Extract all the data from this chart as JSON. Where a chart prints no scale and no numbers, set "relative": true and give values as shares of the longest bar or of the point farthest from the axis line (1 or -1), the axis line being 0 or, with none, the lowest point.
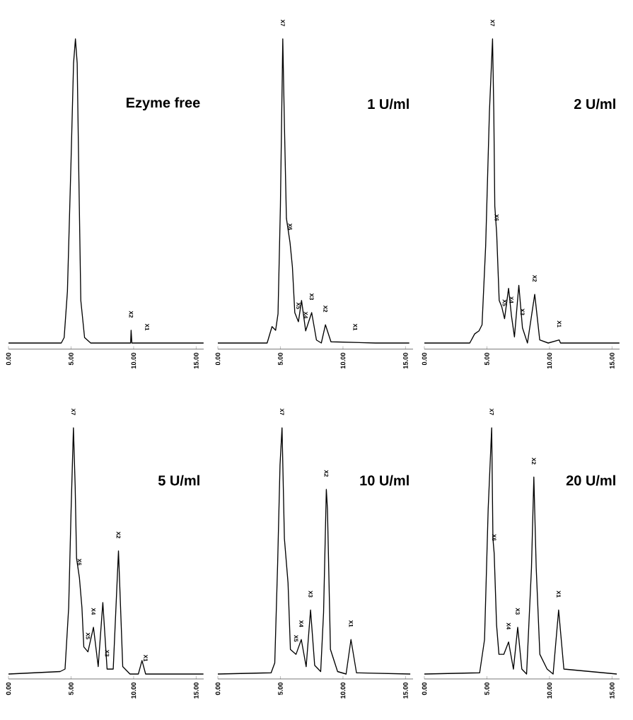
{
  "chart_data": [
    {
      "type": "line",
      "title": "Ezyme free",
      "relative": true,
      "color": "#000000",
      "xlim": [
        0,
        15.6
      ],
      "xticks": [
        {
          "value": 0,
          "label": "0.00"
        },
        {
          "value": 5,
          "label": "5.00"
        },
        {
          "value": 10,
          "label": "10.00"
        },
        {
          "value": 15,
          "label": "15.00"
        }
      ],
      "x": [
        0,
        4.22,
        4.45,
        4.71,
        5.0,
        5.2,
        5.35,
        5.49,
        5.63,
        5.78,
        6.08,
        6.57,
        8.92,
        9.76,
        9.8,
        9.86,
        15.59
      ],
      "values": [
        0,
        0,
        0.018,
        0.17,
        0.6,
        0.92,
        1.0,
        0.92,
        0.53,
        0.14,
        0.018,
        0,
        0,
        0,
        0.042,
        0,
        0
      ],
      "annotations": [
        {
          "text": "X2",
          "x": 9.8,
          "y": 0.042
        },
        {
          "text": "X1",
          "x": 11.08,
          "y": 0
        }
      ]
    },
    {
      "type": "line",
      "title": "1 U/ml",
      "relative": true,
      "color": "#000000",
      "xlim": [
        0,
        15.6
      ],
      "xticks": [
        {
          "value": 0,
          "label": "0.00"
        },
        {
          "value": 5,
          "label": "5.00"
        },
        {
          "value": 10,
          "label": "10.00"
        },
        {
          "value": 15,
          "label": "15.00"
        }
      ],
      "x": [
        0,
        3.94,
        4.33,
        4.62,
        4.81,
        5.0,
        5.19,
        5.33,
        5.48,
        5.77,
        5.96,
        6.15,
        6.44,
        6.69,
        7.02,
        7.5,
        7.88,
        8.27,
        8.6,
        9.04,
        12.6,
        15.3
      ],
      "values": [
        0,
        0,
        0.054,
        0.042,
        0.096,
        0.45,
        1.0,
        0.7,
        0.41,
        0.33,
        0.25,
        0.1,
        0.07,
        0.14,
        0.04,
        0.1,
        0.01,
        0,
        0.06,
        0.004,
        0,
        0
      ],
      "annotations": [
        {
          "text": "X7",
          "x": 5.19,
          "y": 1.0
        },
        {
          "text": "X6",
          "x": 5.77,
          "y": 0.33
        },
        {
          "text": "X5",
          "x": 6.44,
          "y": 0.07
        },
        {
          "text": "X4",
          "x": 7.02,
          "y": 0.04
        },
        {
          "text": "X3",
          "x": 7.5,
          "y": 0.1
        },
        {
          "text": "X2",
          "x": 8.6,
          "y": 0.06
        },
        {
          "text": "X1",
          "x": 10.98,
          "y": 0
        }
      ]
    },
    {
      "type": "line",
      "title": "2 U/ml",
      "relative": true,
      "color": "#000000",
      "xlim": [
        0,
        15.6
      ],
      "xticks": [
        {
          "value": 0,
          "label": "0.00"
        },
        {
          "value": 5,
          "label": "5.00"
        },
        {
          "value": 10,
          "label": "10.00"
        },
        {
          "value": 15,
          "label": "15.00"
        }
      ],
      "x": [
        0,
        3.63,
        4.02,
        4.37,
        4.61,
        4.9,
        5.2,
        5.45,
        5.55,
        5.63,
        5.78,
        5.98,
        6.18,
        6.41,
        6.73,
        6.96,
        7.2,
        7.55,
        7.84,
        8.24,
        8.82,
        9.22,
        9.9,
        10.78,
        10.88,
        15.59
      ],
      "values": [
        0,
        0,
        0.03,
        0.04,
        0.06,
        0.32,
        0.76,
        1.0,
        0.76,
        0.45,
        0.36,
        0.14,
        0.12,
        0.08,
        0.18,
        0.09,
        0.02,
        0.19,
        0.05,
        0,
        0.16,
        0.01,
        0,
        0.01,
        0,
        0
      ],
      "annotations": [
        {
          "text": "X7",
          "x": 5.45,
          "y": 1.0
        },
        {
          "text": "X6",
          "x": 5.78,
          "y": 0.36
        },
        {
          "text": "X5",
          "x": 6.41,
          "y": 0.08
        },
        {
          "text": "X4",
          "x": 6.96,
          "y": 0.09
        },
        {
          "text": "X3",
          "x": 7.84,
          "y": 0.05
        },
        {
          "text": "X2",
          "x": 8.82,
          "y": 0.16
        },
        {
          "text": "X1",
          "x": 10.78,
          "y": 0.01
        }
      ]
    },
    {
      "type": "line",
      "title": "5 U/ml",
      "relative": true,
      "color": "#000000",
      "xlim": [
        0,
        15.6
      ],
      "xticks": [
        {
          "value": 0,
          "label": "0.00"
        },
        {
          "value": 5,
          "label": "5.00"
        },
        {
          "value": 10,
          "label": "10.00"
        },
        {
          "value": 15,
          "label": "15.00"
        }
      ],
      "x": [
        0,
        4.13,
        4.52,
        4.81,
        5.0,
        5.19,
        5.33,
        5.44,
        5.67,
        5.87,
        6.02,
        6.35,
        6.79,
        7.17,
        7.54,
        7.88,
        8.37,
        8.79,
        9.13,
        9.71,
        10.38,
        10.67,
        10.96,
        15.58
      ],
      "values": [
        0,
        0.01,
        0.02,
        0.27,
        0.66,
        1.0,
        0.76,
        0.47,
        0.39,
        0.27,
        0.11,
        0.09,
        0.19,
        0.03,
        0.29,
        0.02,
        0.02,
        0.5,
        0.03,
        0,
        0,
        0.055,
        0,
        0
      ],
      "annotations": [
        {
          "text": "X7",
          "x": 5.19,
          "y": 1.0
        },
        {
          "text": "X6",
          "x": 5.67,
          "y": 0.39
        },
        {
          "text": "X5",
          "x": 6.35,
          "y": 0.09
        },
        {
          "text": "X4",
          "x": 6.79,
          "y": 0.19
        },
        {
          "text": "X3",
          "x": 7.88,
          "y": 0.02
        },
        {
          "text": "X2",
          "x": 8.79,
          "y": 0.5
        },
        {
          "text": "X1",
          "x": 10.96,
          "y": 0
        }
      ]
    },
    {
      "type": "line",
      "title": "10 U/ml",
      "relative": true,
      "color": "#000000",
      "xlim": [
        0,
        15.6
      ],
      "xticks": [
        {
          "value": 0,
          "label": "0.00"
        },
        {
          "value": 5,
          "label": "5.00"
        },
        {
          "value": 10,
          "label": "10.00"
        },
        {
          "value": 15,
          "label": "15.00"
        }
      ],
      "x": [
        0,
        4.26,
        4.55,
        4.78,
        4.97,
        5.13,
        5.32,
        5.61,
        5.8,
        6.25,
        6.67,
        7.06,
        7.41,
        7.74,
        8.22,
        8.45,
        8.67,
        8.76,
        9.0,
        9.57,
        10.25,
        10.64,
        11.08,
        15.38
      ],
      "values": [
        0,
        0.005,
        0.045,
        0.45,
        0.85,
        1.0,
        0.55,
        0.37,
        0.1,
        0.08,
        0.14,
        0.03,
        0.26,
        0.035,
        0.01,
        0.25,
        0.75,
        0.67,
        0.1,
        0.01,
        0,
        0.14,
        0.005,
        0
      ],
      "annotations": [
        {
          "text": "X7",
          "x": 5.13,
          "y": 1.0
        },
        {
          "text": "X5",
          "x": 6.25,
          "y": 0.08
        },
        {
          "text": "X4",
          "x": 6.67,
          "y": 0.14
        },
        {
          "text": "X3",
          "x": 7.41,
          "y": 0.26
        },
        {
          "text": "X2",
          "x": 8.67,
          "y": 0.75
        },
        {
          "text": "X1",
          "x": 10.64,
          "y": 0.14
        }
      ]
    },
    {
      "type": "line",
      "title": "20 U/ml",
      "relative": true,
      "color": "#000000",
      "xlim": [
        0,
        15.6
      ],
      "xticks": [
        {
          "value": 0,
          "label": "0.00"
        },
        {
          "value": 5,
          "label": "5.00"
        },
        {
          "value": 10,
          "label": "10.00"
        },
        {
          "value": 15,
          "label": "15.00"
        }
      ],
      "x": [
        0,
        4.42,
        4.81,
        5.1,
        5.38,
        5.48,
        5.58,
        5.77,
        5.96,
        6.35,
        6.73,
        7.12,
        7.46,
        7.79,
        8.17,
        8.56,
        8.75,
        8.94,
        9.23,
        9.81,
        10.29,
        10.73,
        11.15,
        15.38
      ],
      "values": [
        0,
        0.005,
        0.14,
        0.67,
        1.0,
        0.55,
        0.49,
        0.2,
        0.08,
        0.08,
        0.13,
        0.02,
        0.19,
        0.02,
        0,
        0.43,
        0.8,
        0.43,
        0.08,
        0.02,
        0,
        0.26,
        0.02,
        0
      ],
      "annotations": [
        {
          "text": "X7",
          "x": 5.38,
          "y": 1.0
        },
        {
          "text": "X6",
          "x": 5.58,
          "y": 0.49
        },
        {
          "text": "X4",
          "x": 6.73,
          "y": 0.13
        },
        {
          "text": "X3",
          "x": 7.46,
          "y": 0.19
        },
        {
          "text": "X2",
          "x": 8.75,
          "y": 0.8
        },
        {
          "text": "X1",
          "x": 10.73,
          "y": 0.26
        }
      ]
    }
  ]
}
